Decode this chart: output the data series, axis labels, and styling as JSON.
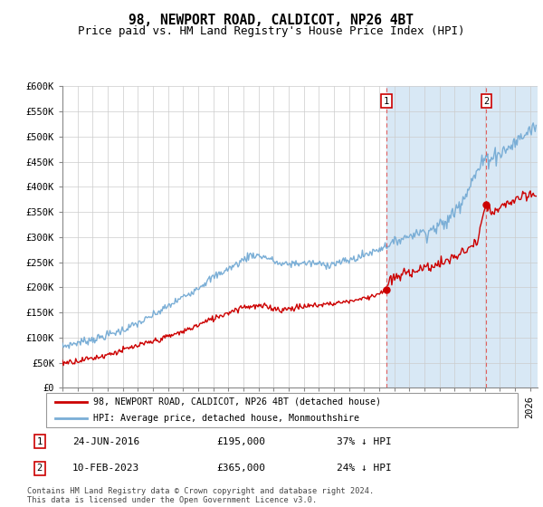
{
  "title": "98, NEWPORT ROAD, CALDICOT, NP26 4BT",
  "subtitle": "Price paid vs. HM Land Registry's House Price Index (HPI)",
  "ylim": [
    0,
    600000
  ],
  "yticks": [
    0,
    50000,
    100000,
    150000,
    200000,
    250000,
    300000,
    350000,
    400000,
    450000,
    500000,
    550000,
    600000
  ],
  "ytick_labels": [
    "£0",
    "£50K",
    "£100K",
    "£150K",
    "£200K",
    "£250K",
    "£300K",
    "£350K",
    "£400K",
    "£450K",
    "£500K",
    "£550K",
    "£600K"
  ],
  "xlim_start": 1995.0,
  "xlim_end": 2026.5,
  "sale1_year": 2016.478,
  "sale1_price": 195000,
  "sale1_label": "1",
  "sale1_date": "24-JUN-2016",
  "sale1_display": "£195,000",
  "sale1_pct": "37% ↓ HPI",
  "sale2_year": 2023.11,
  "sale2_price": 365000,
  "sale2_label": "2",
  "sale2_date": "10-FEB-2023",
  "sale2_display": "£365,000",
  "sale2_pct": "24% ↓ HPI",
  "legend_line1": "98, NEWPORT ROAD, CALDICOT, NP26 4BT (detached house)",
  "legend_line2": "HPI: Average price, detached house, Monmouthshire",
  "footer": "Contains HM Land Registry data © Crown copyright and database right 2024.\nThis data is licensed under the Open Government Licence v3.0.",
  "background_color": "#ffffff",
  "plot_bg_color": "#ffffff",
  "grid_color": "#cccccc",
  "hpi_color": "#7aaed6",
  "property_color": "#cc0000",
  "shade_color": "#d8e8f5",
  "title_fontsize": 10.5,
  "subtitle_fontsize": 9,
  "tick_fontsize": 7.5
}
